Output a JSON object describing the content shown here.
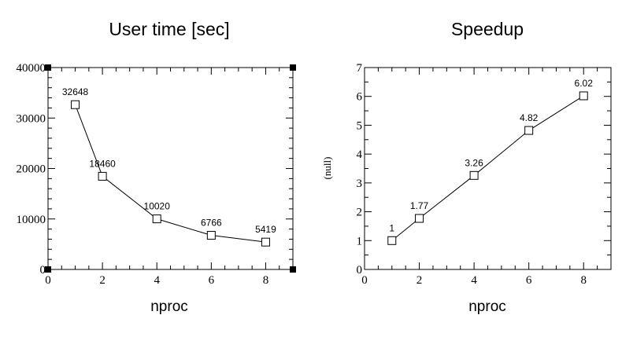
{
  "chart_data": [
    {
      "type": "line",
      "title": "User time [sec]",
      "xlabel": "nproc",
      "ylabel": "",
      "xlim": [
        0,
        9
      ],
      "ylim": [
        0,
        40000
      ],
      "x_major_ticks": [
        0,
        2,
        4,
        6,
        8
      ],
      "x_tick_labels": [
        "0",
        "2",
        "4",
        "6",
        "8"
      ],
      "y_major_ticks": [
        0,
        10000,
        20000,
        30000,
        40000
      ],
      "y_tick_labels": [
        "0",
        "10000",
        "20000",
        "30000",
        "40000"
      ],
      "y_minor_step": 2000,
      "x_minor_step": 0.5,
      "grid": false,
      "marker": "square",
      "selection_handles": true,
      "series": [
        {
          "x": [
            1,
            2,
            4,
            6,
            8
          ],
          "values": [
            32648,
            18460,
            10020,
            6766,
            5419
          ],
          "labels": [
            "32648",
            "18460",
            "10020",
            "6766",
            "5419"
          ]
        }
      ]
    },
    {
      "type": "line",
      "title": "Speedup",
      "xlabel": "nproc",
      "ylabel": "(null)",
      "xlim": [
        0,
        9
      ],
      "ylim": [
        0,
        7
      ],
      "x_major_ticks": [
        0,
        2,
        4,
        6,
        8
      ],
      "x_tick_labels": [
        "0",
        "2",
        "4",
        "6",
        "8"
      ],
      "y_major_ticks": [
        0,
        1,
        2,
        3,
        4,
        5,
        6,
        7
      ],
      "y_tick_labels": [
        "0",
        "1",
        "2",
        "3",
        "4",
        "5",
        "6",
        "7"
      ],
      "y_minor_step": 0.5,
      "x_minor_step": 0.5,
      "grid": false,
      "marker": "square",
      "selection_handles": false,
      "series": [
        {
          "x": [
            1,
            2,
            4,
            6,
            8
          ],
          "values": [
            1,
            1.77,
            3.26,
            4.82,
            6.02
          ],
          "labels": [
            "1",
            "1.77",
            "3.26",
            "4.82",
            "6.02"
          ]
        }
      ]
    }
  ]
}
